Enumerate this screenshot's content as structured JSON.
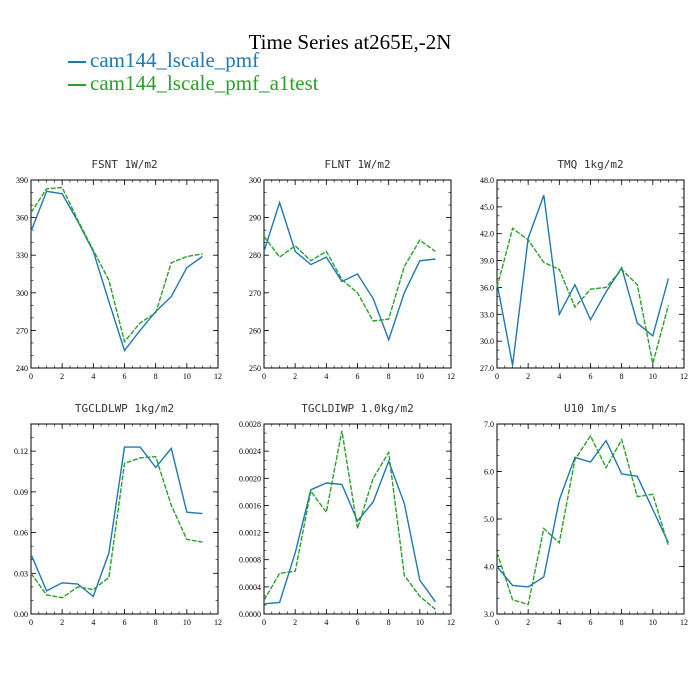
{
  "title": "Time Series at265E,-2N",
  "legend": [
    {
      "label": "cam144_lscale_pmf",
      "color": "#1f77b4"
    },
    {
      "label": "cam144_lscale_pmf_a1test",
      "color": "#2ca02c"
    }
  ],
  "chart_data": [
    {
      "type": "line",
      "title": "FSNT  1W/m2",
      "xlim": [
        0,
        12
      ],
      "ylim": [
        240,
        390
      ],
      "xticks": [
        "0",
        "2",
        "4",
        "6",
        "8",
        "10",
        "12"
      ],
      "yticks": [
        "240",
        "270",
        "300",
        "330",
        "360",
        "390"
      ],
      "x": [
        0,
        1,
        2,
        3,
        4,
        5,
        6,
        7,
        8,
        9,
        10,
        11
      ],
      "series": [
        {
          "name": "cam144_lscale_pmf",
          "values": [
            349,
            381,
            379,
            357,
            333,
            293,
            254,
            270,
            285,
            297,
            320,
            329
          ]
        },
        {
          "name": "cam144_lscale_pmf_a1test",
          "values": [
            364,
            383,
            384,
            358,
            334,
            310,
            261,
            276,
            284,
            324,
            329,
            331
          ]
        }
      ]
    },
    {
      "type": "line",
      "title": "FLNT  1W/m2",
      "xlim": [
        0,
        12
      ],
      "ylim": [
        250,
        300
      ],
      "xticks": [
        "0",
        "2",
        "4",
        "6",
        "8",
        "10",
        "12"
      ],
      "yticks": [
        "250",
        "260",
        "270",
        "280",
        "290",
        "300"
      ],
      "x": [
        0,
        1,
        2,
        3,
        4,
        5,
        6,
        7,
        8,
        9,
        10,
        11
      ],
      "series": [
        {
          "name": "cam144_lscale_pmf",
          "values": [
            281,
            294,
            281,
            277.5,
            279.5,
            273,
            275,
            268.5,
            257.5,
            270,
            278.5,
            279
          ]
        },
        {
          "name": "cam144_lscale_pmf_a1test",
          "values": [
            285,
            279.5,
            282.5,
            278.5,
            281,
            273.5,
            270,
            262.5,
            263,
            277,
            284,
            281
          ]
        }
      ]
    },
    {
      "type": "line",
      "title": "TMQ  1kg/m2",
      "xlim": [
        0,
        12
      ],
      "ylim": [
        27.0,
        48.0
      ],
      "xticks": [
        "0",
        "2",
        "4",
        "6",
        "8",
        "10",
        "12"
      ],
      "yticks": [
        "27.0",
        "30.0",
        "33.0",
        "36.0",
        "39.0",
        "42.0",
        "45.0",
        "48.0"
      ],
      "x": [
        0,
        1,
        2,
        3,
        4,
        5,
        6,
        7,
        8,
        9,
        10,
        11
      ],
      "series": [
        {
          "name": "cam144_lscale_pmf",
          "values": [
            36.5,
            27.3,
            41.5,
            46.3,
            33.0,
            36.3,
            32.4,
            35.5,
            38.2,
            32.0,
            30.6,
            37.0
          ]
        },
        {
          "name": "cam144_lscale_pmf_a1test",
          "values": [
            36.0,
            42.6,
            41.3,
            38.8,
            38.0,
            33.8,
            35.8,
            36.0,
            38.0,
            36.3,
            27.5,
            34.0
          ]
        }
      ]
    },
    {
      "type": "line",
      "title": "TGCLDLWP  1kg/m2",
      "xlim": [
        0,
        12
      ],
      "ylim": [
        0.0,
        0.14
      ],
      "xticks": [
        "0",
        "2",
        "4",
        "6",
        "8",
        "10",
        "12"
      ],
      "yticks": [
        "0.00",
        "0.03",
        "0.06",
        "0.09",
        "0.12"
      ],
      "x": [
        0,
        1,
        2,
        3,
        4,
        5,
        6,
        7,
        8,
        9,
        10,
        11
      ],
      "series": [
        {
          "name": "cam144_lscale_pmf",
          "values": [
            0.044,
            0.017,
            0.023,
            0.022,
            0.013,
            0.045,
            0.123,
            0.123,
            0.108,
            0.122,
            0.075,
            0.074
          ]
        },
        {
          "name": "cam144_lscale_pmf_a1test",
          "values": [
            0.03,
            0.014,
            0.012,
            0.02,
            0.018,
            0.027,
            0.111,
            0.115,
            0.116,
            0.08,
            0.055,
            0.053
          ]
        }
      ]
    },
    {
      "type": "line",
      "title": "TGCLDIWP  1.0kg/m2",
      "xlim": [
        0,
        12
      ],
      "ylim": [
        0.0,
        0.0028
      ],
      "xticks": [
        "0",
        "2",
        "4",
        "6",
        "8",
        "10",
        "12"
      ],
      "yticks": [
        "0.0000",
        "0.0004",
        "0.0008",
        "0.0012",
        "0.0016",
        "0.0020",
        "0.0024",
        "0.0028"
      ],
      "x": [
        0,
        1,
        2,
        3,
        4,
        5,
        6,
        7,
        8,
        9,
        10,
        11
      ],
      "series": [
        {
          "name": "cam144_lscale_pmf",
          "values": [
            0.00015,
            0.00017,
            0.0009,
            0.00183,
            0.00193,
            0.00191,
            0.00137,
            0.00165,
            0.00225,
            0.00163,
            0.0005,
            0.00018
          ]
        },
        {
          "name": "cam144_lscale_pmf_a1test",
          "values": [
            0.0002,
            0.0006,
            0.00063,
            0.00181,
            0.0015,
            0.0027,
            0.00126,
            0.002,
            0.00238,
            0.00057,
            0.00026,
            7e-05
          ]
        }
      ]
    },
    {
      "type": "line",
      "title": "U10  1m/s",
      "xlim": [
        0,
        12
      ],
      "ylim": [
        3.0,
        7.0
      ],
      "xticks": [
        "0",
        "2",
        "4",
        "6",
        "8",
        "10",
        "12"
      ],
      "yticks": [
        "3.0",
        "4.0",
        "5.0",
        "6.0",
        "7.0"
      ],
      "x": [
        0,
        1,
        2,
        3,
        4,
        5,
        6,
        7,
        8,
        9,
        10,
        11
      ],
      "series": [
        {
          "name": "cam144_lscale_pmf",
          "values": [
            4.0,
            3.6,
            3.57,
            3.78,
            5.4,
            6.3,
            6.2,
            6.65,
            5.95,
            5.9,
            5.2,
            4.5
          ]
        },
        {
          "name": "cam144_lscale_pmf_a1test",
          "values": [
            4.3,
            3.3,
            3.2,
            4.8,
            4.5,
            6.25,
            6.75,
            6.08,
            6.67,
            5.47,
            5.52,
            4.43
          ]
        }
      ]
    }
  ]
}
